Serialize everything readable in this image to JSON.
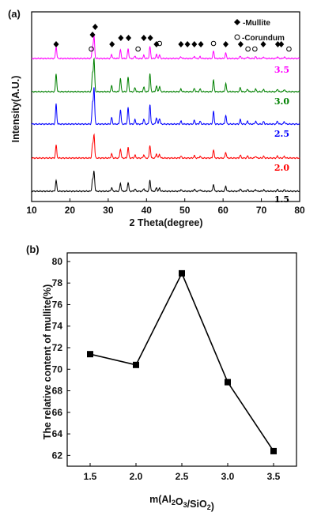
{
  "chart_data": [
    {
      "type": "line",
      "panel_label": "(a)",
      "xlabel": "2 Theta(degree)",
      "ylabel": "Intensity(A.U.)",
      "xlim": [
        10,
        80
      ],
      "x_ticks": [
        10,
        20,
        30,
        40,
        50,
        60,
        70,
        80
      ],
      "legend": {
        "placement": "top-right",
        "entries": [
          {
            "marker": "filled-diamond",
            "label": "-Mullite"
          },
          {
            "marker": "open-circle",
            "label": "-Corundum"
          }
        ]
      },
      "peaks": [
        {
          "x": 16.4,
          "h": 0.55
        },
        {
          "x": 25.9,
          "h": 0.55
        },
        {
          "x": 26.3,
          "h": 1.0
        },
        {
          "x": 30.9,
          "h": 0.18
        },
        {
          "x": 33.2,
          "h": 0.4
        },
        {
          "x": 35.2,
          "h": 0.45
        },
        {
          "x": 37.0,
          "h": 0.12
        },
        {
          "x": 39.3,
          "h": 0.14
        },
        {
          "x": 40.9,
          "h": 0.55
        },
        {
          "x": 42.6,
          "h": 0.18
        },
        {
          "x": 43.4,
          "h": 0.16
        },
        {
          "x": 49.0,
          "h": 0.08
        },
        {
          "x": 52.5,
          "h": 0.1
        },
        {
          "x": 54.0,
          "h": 0.08
        },
        {
          "x": 57.5,
          "h": 0.35
        },
        {
          "x": 60.7,
          "h": 0.25
        },
        {
          "x": 64.5,
          "h": 0.12
        },
        {
          "x": 66.4,
          "h": 0.08
        },
        {
          "x": 68.5,
          "h": 0.08
        },
        {
          "x": 70.6,
          "h": 0.07
        },
        {
          "x": 74.2,
          "h": 0.08
        },
        {
          "x": 76.0,
          "h": 0.07
        }
      ],
      "series": [
        {
          "name": "1.5",
          "color": "#000000",
          "scale": 0.55
        },
        {
          "name": "2.0",
          "color": "#ff0000",
          "scale": 0.65
        },
        {
          "name": "2.5",
          "color": "#0000ff",
          "scale": 1.0
        },
        {
          "name": "3.0",
          "color": "#008000",
          "scale": 0.9
        },
        {
          "name": "3.5",
          "color": "#ff00ff",
          "scale": 0.6
        }
      ],
      "mullite_markers": [
        16.4,
        25.9,
        26.6,
        31.0,
        33.3,
        35.3,
        39.3,
        41.0,
        42.6,
        49.0,
        50.7,
        52.5,
        54.2,
        60.7,
        64.6,
        70.5,
        74.3,
        75.2
      ],
      "corundum_markers": [
        25.6,
        37.8,
        43.4,
        57.5,
        66.5,
        68.3,
        77.2
      ]
    },
    {
      "type": "line",
      "panel_label": "(b)",
      "xlabel": "m(Al2O3/SiO2)",
      "ylabel": "The relative content of mullite(%)",
      "x": [
        1.5,
        2.0,
        2.5,
        3.0,
        3.5
      ],
      "values": [
        71.4,
        70.4,
        78.9,
        68.8,
        62.4
      ],
      "xlim": [
        1.25,
        3.75
      ],
      "ylim": [
        61,
        80.8
      ],
      "x_ticks": [
        "1.5",
        "2.0",
        "2.5",
        "3.0",
        "3.5"
      ],
      "y_ticks": [
        "62",
        "64",
        "66",
        "68",
        "70",
        "72",
        "74",
        "76",
        "78",
        "80"
      ],
      "color": "#000000"
    }
  ]
}
